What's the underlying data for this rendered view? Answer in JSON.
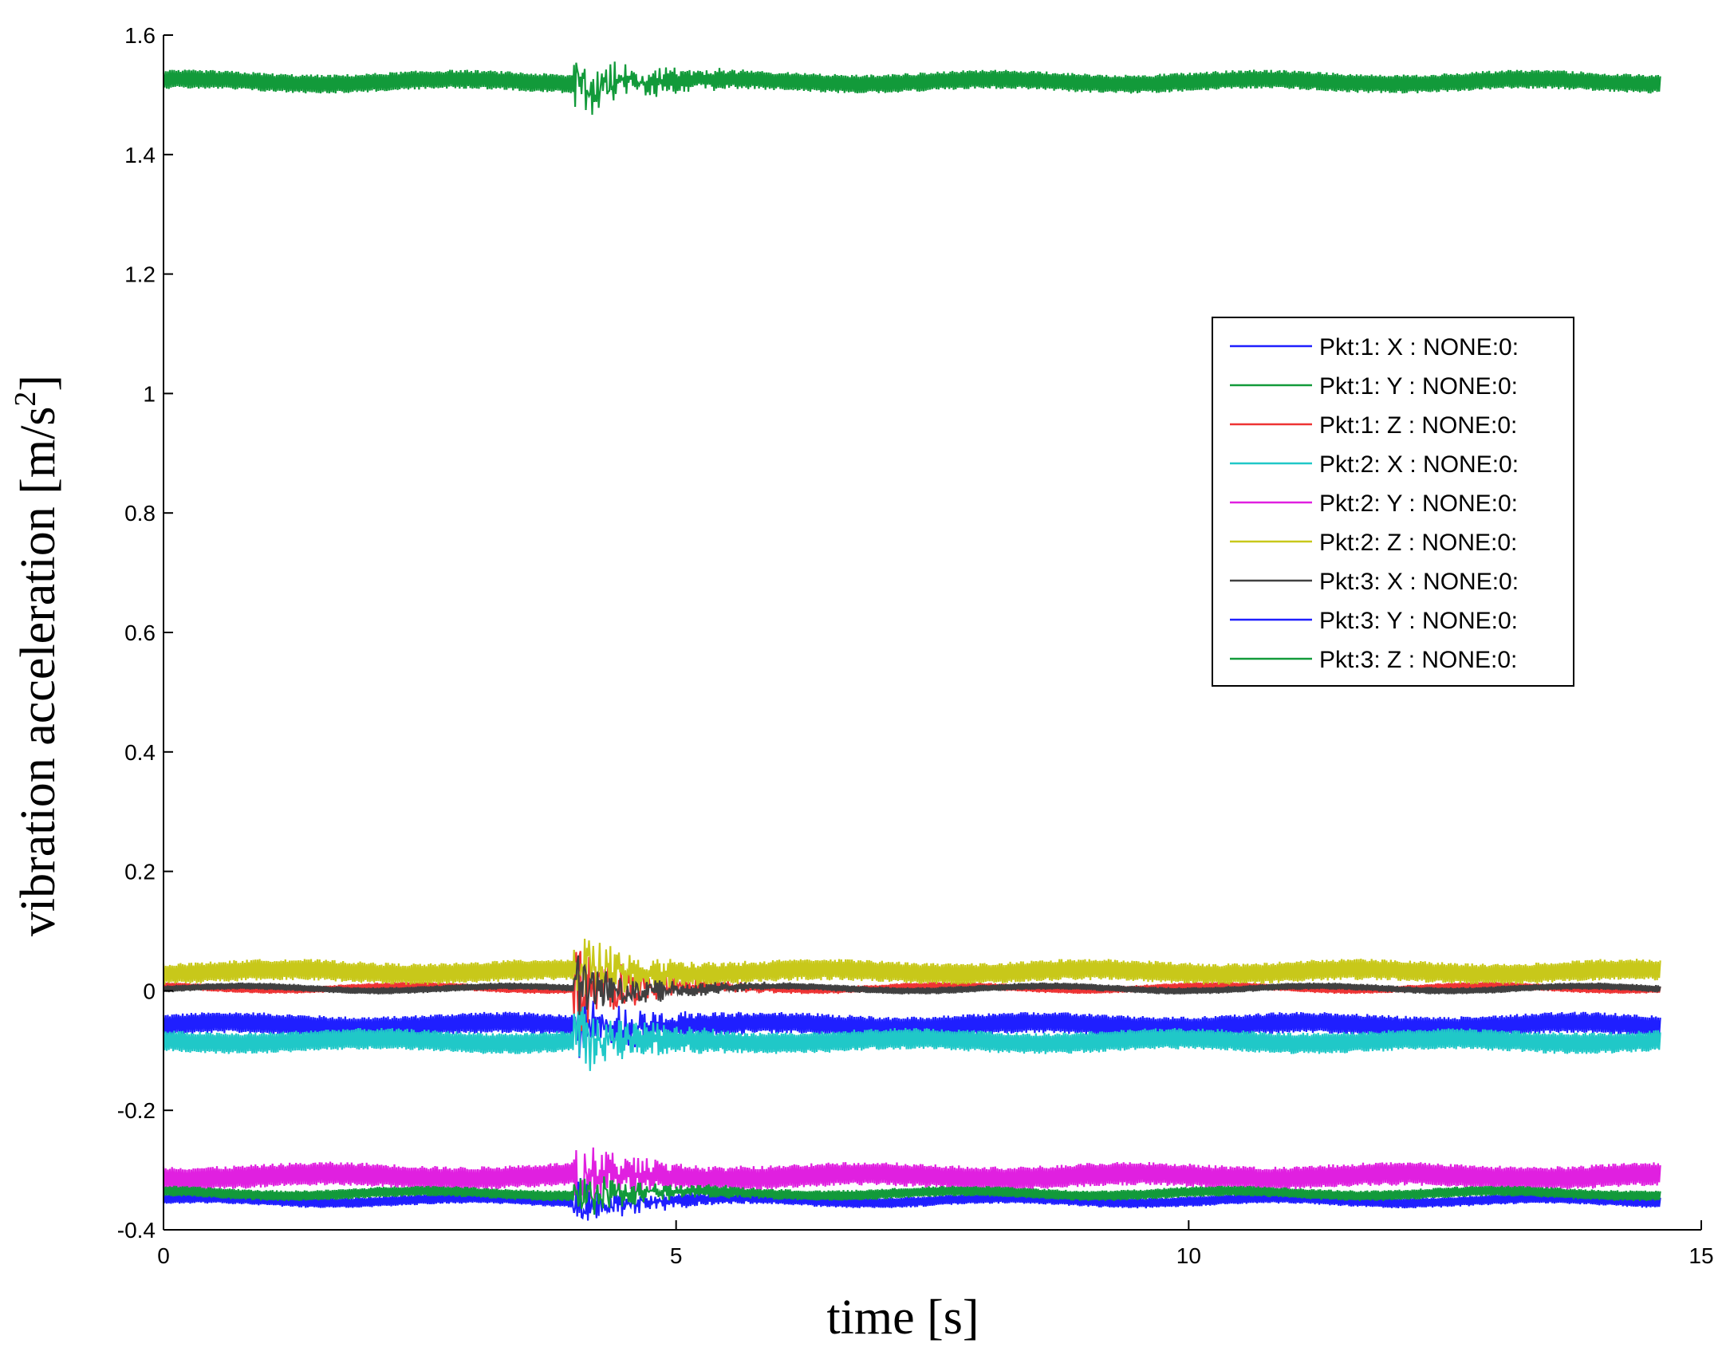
{
  "chart_data": {
    "type": "line",
    "title": "",
    "xlabel": "time [s]",
    "ylabel_main": "vibration acceleration [m/s",
    "ylabel_sup": "2",
    "ylabel_close": "]",
    "xlim": [
      0,
      15
    ],
    "ylim": [
      -0.4,
      1.6
    ],
    "x_ticks": [
      0,
      5,
      10,
      15
    ],
    "x_tick_labels": [
      "0",
      "5",
      "10",
      "15"
    ],
    "y_ticks": [
      -0.4,
      -0.2,
      0,
      0.2,
      0.4,
      0.6,
      0.8,
      1.0,
      1.2,
      1.4,
      1.6
    ],
    "y_tick_labels": [
      "-0.4",
      "-0.2",
      "0",
      "0.2",
      "0.4",
      "0.6",
      "0.8",
      "1",
      "1.2",
      "1.4",
      "1.6"
    ],
    "grid": false,
    "legend_position": "upper-right",
    "x_range": [
      0,
      14.6
    ],
    "event_time": 4.0,
    "series": [
      {
        "name": "Pkt:1:  X : NONE:0:",
        "color": "#1f1fff",
        "mean": -0.057,
        "amplitude": 0.018,
        "disturbance": 0.05
      },
      {
        "name": "Pkt:1:  Y : NONE:0:",
        "color": "#129a3a",
        "mean": 1.522,
        "amplitude": 0.016,
        "disturbance": 0.05
      },
      {
        "name": "Pkt:1:  Z : NONE:0:",
        "color": "#ee3333",
        "mean": 0.005,
        "amplitude": 0.006,
        "disturbance": 0.08
      },
      {
        "name": "Pkt:2:  X : NONE:0:",
        "color": "#20c8c8",
        "mean": -0.084,
        "amplitude": 0.018,
        "disturbance": 0.05
      },
      {
        "name": "Pkt:2:  Y : NONE:0:",
        "color": "#e020e0",
        "mean": -0.31,
        "amplitude": 0.02,
        "disturbance": 0.04
      },
      {
        "name": "Pkt:2:  Z : NONE:0:",
        "color": "#c8c81a",
        "mean": 0.032,
        "amplitude": 0.018,
        "disturbance": 0.05
      },
      {
        "name": "Pkt:3:  X : NONE:0:",
        "color": "#404040",
        "mean": 0.004,
        "amplitude": 0.006,
        "disturbance": 0.06
      },
      {
        "name": "Pkt:3:  Y : NONE:0:",
        "color": "#1f1fff",
        "mean": -0.351,
        "amplitude": 0.009,
        "disturbance": 0.04
      },
      {
        "name": "Pkt:3:  Z : NONE:0:",
        "color": "#129a3a",
        "mean": -0.339,
        "amplitude": 0.009,
        "disturbance": 0.04
      }
    ]
  }
}
